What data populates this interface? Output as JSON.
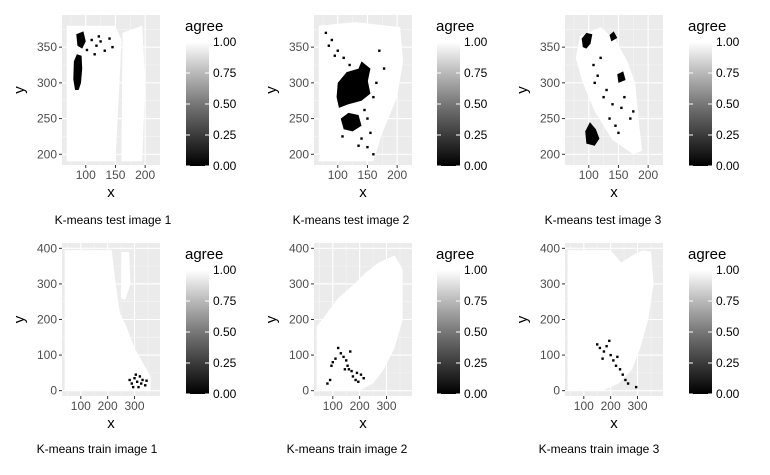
{
  "chart_data": [
    {
      "type": "heatmap",
      "caption": "K-means test image 1",
      "xlabel": "x",
      "ylabel": "y",
      "xlim": [
        60,
        225
      ],
      "ylim": [
        185,
        395
      ],
      "xticks": [
        100,
        150,
        200
      ],
      "yticks": [
        200,
        250,
        300,
        350
      ],
      "legend": {
        "title": "agree",
        "labels": [
          "1.00",
          "0.75",
          "0.50",
          "0.25",
          "0.00"
        ],
        "position": "right"
      },
      "grid": true,
      "white_regions": [
        [
          [
            68,
            190
          ],
          [
            68,
            380
          ],
          [
            150,
            380
          ],
          [
            160,
            360
          ],
          [
            158,
            320
          ],
          [
            150,
            190
          ]
        ],
        [
          [
            160,
            190
          ],
          [
            162,
            370
          ],
          [
            195,
            380
          ],
          [
            200,
            300
          ],
          [
            195,
            190
          ]
        ]
      ],
      "black_regions": [
        [
          [
            82,
            290
          ],
          [
            79,
            305
          ],
          [
            80,
            330
          ],
          [
            85,
            340
          ],
          [
            93,
            338
          ],
          [
            94,
            320
          ],
          [
            92,
            300
          ],
          [
            88,
            290
          ]
        ],
        [
          [
            86,
            352
          ],
          [
            84,
            368
          ],
          [
            96,
            372
          ],
          [
            100,
            358
          ],
          [
            94,
            348
          ]
        ]
      ],
      "black_specks": [
        [
          118,
          352
        ],
        [
          125,
          358
        ],
        [
          132,
          345
        ],
        [
          110,
          360
        ],
        [
          145,
          350
        ],
        [
          102,
          346
        ],
        [
          122,
          365
        ],
        [
          140,
          362
        ],
        [
          115,
          340
        ]
      ]
    },
    {
      "type": "heatmap",
      "caption": "K-means test image 2",
      "xlabel": "x",
      "ylabel": "y",
      "xlim": [
        60,
        225
      ],
      "ylim": [
        185,
        395
      ],
      "xticks": [
        100,
        150,
        200
      ],
      "yticks": [
        200,
        250,
        300,
        350
      ],
      "legend": {
        "title": "agree",
        "labels": [
          "1.00",
          "0.75",
          "0.50",
          "0.25",
          "0.00"
        ],
        "position": "right"
      },
      "grid": true,
      "white_regions": [
        [
          [
            68,
            190
          ],
          [
            68,
            380
          ],
          [
            130,
            385
          ],
          [
            205,
            378
          ],
          [
            210,
            330
          ],
          [
            200,
            280
          ],
          [
            175,
            230
          ],
          [
            160,
            190
          ]
        ]
      ],
      "black_regions": [
        [
          [
            102,
            265
          ],
          [
            98,
            280
          ],
          [
            100,
            300
          ],
          [
            115,
            315
          ],
          [
            135,
            320
          ],
          [
            150,
            305
          ],
          [
            155,
            285
          ],
          [
            140,
            275
          ],
          [
            118,
            270
          ]
        ],
        [
          [
            110,
            235
          ],
          [
            105,
            250
          ],
          [
            118,
            258
          ],
          [
            135,
            255
          ],
          [
            140,
            240
          ],
          [
            125,
            232
          ]
        ],
        [
          [
            125,
            300
          ],
          [
            140,
            330
          ],
          [
            155,
            320
          ],
          [
            150,
            300
          ]
        ]
      ],
      "black_specks": [
        [
          80,
          370
        ],
        [
          90,
          360
        ],
        [
          100,
          345
        ],
        [
          110,
          335
        ],
        [
          120,
          325
        ],
        [
          130,
          310
        ],
        [
          145,
          262
        ],
        [
          150,
          250
        ],
        [
          155,
          230
        ],
        [
          140,
          222
        ],
        [
          135,
          212
        ],
        [
          160,
          200
        ],
        [
          170,
          345
        ],
        [
          178,
          320
        ],
        [
          85,
          352
        ],
        [
          95,
          338
        ],
        [
          108,
          225
        ],
        [
          150,
          210
        ],
        [
          160,
          280
        ],
        [
          165,
          300
        ]
      ]
    },
    {
      "type": "heatmap",
      "caption": "K-means test image 3",
      "xlabel": "x",
      "ylabel": "y",
      "xlim": [
        60,
        225
      ],
      "ylim": [
        185,
        395
      ],
      "xticks": [
        100,
        150,
        200
      ],
      "yticks": [
        200,
        250,
        300,
        350
      ],
      "legend": {
        "title": "agree",
        "labels": [
          "1.00",
          "0.75",
          "0.50",
          "0.25",
          "0.00"
        ],
        "position": "right"
      },
      "grid": true,
      "white_regions": [
        [
          [
            78,
            335
          ],
          [
            85,
            365
          ],
          [
            120,
            378
          ],
          [
            145,
            360
          ],
          [
            165,
            330
          ],
          [
            178,
            300
          ],
          [
            185,
            240
          ],
          [
            190,
            205
          ],
          [
            175,
            200
          ],
          [
            140,
            220
          ],
          [
            110,
            260
          ],
          [
            90,
            300
          ]
        ]
      ],
      "black_regions": [
        [
          [
            90,
            350
          ],
          [
            88,
            362
          ],
          [
            96,
            370
          ],
          [
            106,
            368
          ],
          [
            103,
            355
          ],
          [
            96,
            348
          ]
        ],
        [
          [
            96,
            215
          ],
          [
            94,
            232
          ],
          [
            102,
            245
          ],
          [
            112,
            235
          ],
          [
            118,
            222
          ],
          [
            110,
            212
          ]
        ],
        [
          [
            138,
            358
          ],
          [
            135,
            367
          ],
          [
            142,
            372
          ],
          [
            148,
            363
          ]
        ],
        [
          [
            150,
            300
          ],
          [
            148,
            312
          ],
          [
            158,
            316
          ],
          [
            162,
            304
          ]
        ]
      ],
      "black_specks": [
        [
          110,
          300
        ],
        [
          115,
          310
        ],
        [
          130,
          290
        ],
        [
          140,
          270
        ],
        [
          155,
          265
        ],
        [
          160,
          280
        ],
        [
          125,
          280
        ],
        [
          145,
          240
        ],
        [
          150,
          230
        ],
        [
          135,
          250
        ],
        [
          120,
          335
        ],
        [
          170,
          250
        ],
        [
          175,
          260
        ],
        [
          108,
          325
        ]
      ]
    },
    {
      "type": "heatmap",
      "caption": "K-means train image 1",
      "xlabel": "x",
      "ylabel": "y",
      "xlim": [
        30,
        395
      ],
      "ylim": [
        -15,
        415
      ],
      "xticks": [
        100,
        200,
        300
      ],
      "yticks": [
        0,
        100,
        200,
        300,
        400
      ],
      "legend": {
        "title": "agree",
        "labels": [
          "1.00",
          "0.75",
          "0.50",
          "0.25",
          "0.00"
        ],
        "position": "right"
      },
      "grid": true,
      "white_regions": [
        [
          [
            40,
            0
          ],
          [
            40,
            395
          ],
          [
            215,
            395
          ],
          [
            230,
            300
          ],
          [
            245,
            220
          ],
          [
            270,
            180
          ],
          [
            300,
            120
          ],
          [
            330,
            80
          ],
          [
            360,
            40
          ],
          [
            360,
            0
          ]
        ],
        [
          [
            250,
            260
          ],
          [
            252,
            390
          ],
          [
            280,
            390
          ],
          [
            285,
            300
          ],
          [
            265,
            255
          ]
        ]
      ],
      "black_regions": [],
      "black_specks": [
        [
          282,
          30
        ],
        [
          290,
          20
        ],
        [
          300,
          35
        ],
        [
          310,
          25
        ],
        [
          320,
          40
        ],
        [
          330,
          30
        ],
        [
          340,
          15
        ],
        [
          295,
          10
        ],
        [
          305,
          45
        ],
        [
          325,
          20
        ],
        [
          315,
          10
        ],
        [
          345,
          28
        ]
      ]
    },
    {
      "type": "heatmap",
      "caption": "K-means train image 2",
      "xlabel": "x",
      "ylabel": "y",
      "xlim": [
        30,
        395
      ],
      "ylim": [
        -15,
        415
      ],
      "xticks": [
        100,
        200,
        300
      ],
      "yticks": [
        0,
        100,
        200,
        300,
        400
      ],
      "legend": {
        "title": "agree",
        "labels": [
          "1.00",
          "0.75",
          "0.50",
          "0.25",
          "0.00"
        ],
        "position": "right"
      },
      "grid": true,
      "white_regions": [
        [
          [
            40,
            0
          ],
          [
            40,
            180
          ],
          [
            120,
            260
          ],
          [
            180,
            300
          ],
          [
            220,
            330
          ],
          [
            270,
            360
          ],
          [
            330,
            380
          ],
          [
            360,
            340
          ],
          [
            360,
            200
          ],
          [
            330,
            120
          ],
          [
            290,
            60
          ],
          [
            250,
            20
          ],
          [
            200,
            0
          ]
        ]
      ],
      "black_regions": [],
      "black_specks": [
        [
          120,
          120
        ],
        [
          130,
          105
        ],
        [
          140,
          95
        ],
        [
          150,
          85
        ],
        [
          155,
          70
        ],
        [
          160,
          60
        ],
        [
          170,
          55
        ],
        [
          175,
          40
        ],
        [
          185,
          30
        ],
        [
          195,
          25
        ],
        [
          110,
          90
        ],
        [
          100,
          80
        ],
        [
          95,
          70
        ],
        [
          165,
          110
        ],
        [
          190,
          50
        ],
        [
          205,
          45
        ],
        [
          215,
          35
        ],
        [
          145,
          60
        ],
        [
          80,
          20
        ],
        [
          90,
          30
        ]
      ]
    },
    {
      "type": "heatmap",
      "caption": "K-means train image 3",
      "xlabel": "x",
      "ylabel": "y",
      "xlim": [
        30,
        395
      ],
      "ylim": [
        -15,
        415
      ],
      "xticks": [
        100,
        200,
        300
      ],
      "yticks": [
        0,
        100,
        200,
        300,
        400
      ],
      "legend": {
        "title": "agree",
        "labels": [
          "1.00",
          "0.75",
          "0.50",
          "0.25",
          "0.00"
        ],
        "position": "right"
      },
      "grid": true,
      "white_regions": [
        [
          [
            40,
            0
          ],
          [
            40,
            395
          ],
          [
            200,
            395
          ],
          [
            240,
            360
          ],
          [
            280,
            380
          ],
          [
            320,
            395
          ],
          [
            350,
            390
          ],
          [
            360,
            300
          ],
          [
            340,
            200
          ],
          [
            310,
            120
          ],
          [
            280,
            60
          ],
          [
            230,
            20
          ],
          [
            170,
            0
          ]
        ]
      ],
      "black_regions": [],
      "black_specks": [
        [
          150,
          130
        ],
        [
          160,
          120
        ],
        [
          175,
          110
        ],
        [
          185,
          125
        ],
        [
          200,
          100
        ],
        [
          210,
          85
        ],
        [
          220,
          70
        ],
        [
          235,
          60
        ],
        [
          245,
          45
        ],
        [
          255,
          30
        ],
        [
          265,
          20
        ],
        [
          295,
          10
        ],
        [
          195,
          140
        ],
        [
          170,
          90
        ],
        [
          225,
          95
        ]
      ]
    }
  ]
}
